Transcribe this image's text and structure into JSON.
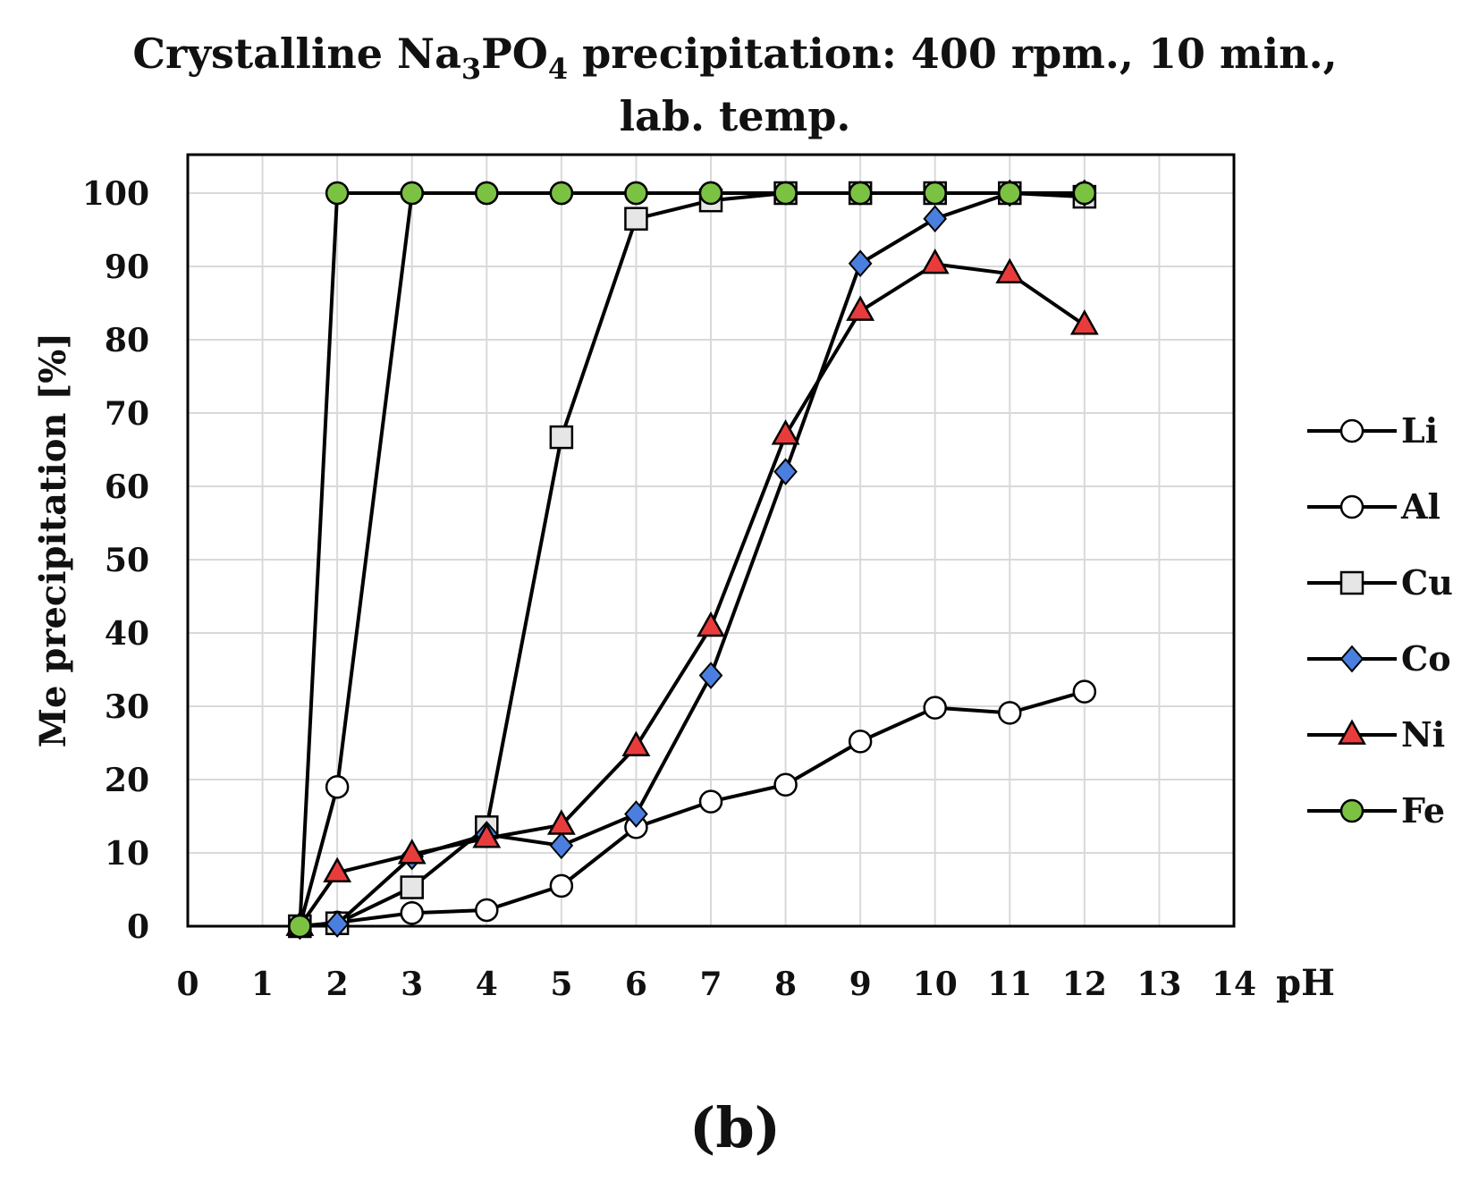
{
  "chart_data": {
    "type": "line",
    "title_main": "Crystalline Na",
    "title_sub1": "3",
    "title_mid": "PO",
    "title_sub2": "4",
    "title_rest": " precipitation: 400 rpm., 10 min.,",
    "title_line2": "lab. temp.",
    "xlabel": "pH",
    "ylabel": "Me precipitation [%]",
    "panel_label": "(b)",
    "xlim": [
      0,
      14
    ],
    "ylim": [
      0,
      100
    ],
    "xticks": [
      "0",
      "1",
      "2",
      "3",
      "4",
      "5",
      "6",
      "7",
      "8",
      "9",
      "10",
      "11",
      "12",
      "13",
      "14"
    ],
    "yticks": [
      "0",
      "10",
      "20",
      "30",
      "40",
      "50",
      "60",
      "70",
      "80",
      "90",
      "100"
    ],
    "legend_position": "right",
    "grid": true,
    "x": [
      1.5,
      2,
      3,
      4,
      5,
      6,
      7,
      8,
      9,
      10,
      11,
      12
    ],
    "series": [
      {
        "name": "Li",
        "marker": "circle",
        "fill": "#ffffff",
        "values": [
          0,
          0.5,
          1.8,
          2.2,
          5.5,
          13.5,
          17,
          19.3,
          25.2,
          29.8,
          29.1,
          32
        ]
      },
      {
        "name": "Al",
        "marker": "circle",
        "fill": "#ffffff",
        "values": [
          0,
          19,
          100,
          100,
          100,
          100,
          100,
          100,
          100,
          100,
          100,
          100
        ]
      },
      {
        "name": "Cu",
        "marker": "square",
        "fill": "#e6e6e6",
        "values": [
          0,
          0.4,
          5.3,
          13.5,
          66.7,
          96.5,
          99,
          100,
          100,
          100,
          100,
          99.5
        ]
      },
      {
        "name": "Co",
        "marker": "diamond",
        "fill": "#4a7fe0",
        "values": [
          0,
          0.3,
          9.5,
          12.5,
          11,
          15.3,
          34.2,
          62,
          90.4,
          96.5,
          100,
          100
        ]
      },
      {
        "name": "Ni",
        "marker": "triangle",
        "fill": "#e83c3c",
        "values": [
          0,
          7.3,
          9.8,
          12,
          13.8,
          24.5,
          40.8,
          67,
          83.9,
          90.3,
          89,
          82
        ]
      },
      {
        "name": "Fe",
        "marker": "circle",
        "fill": "#7cc242",
        "values": [
          0,
          100,
          100,
          100,
          100,
          100,
          100,
          100,
          100,
          100,
          100,
          100
        ]
      }
    ]
  }
}
